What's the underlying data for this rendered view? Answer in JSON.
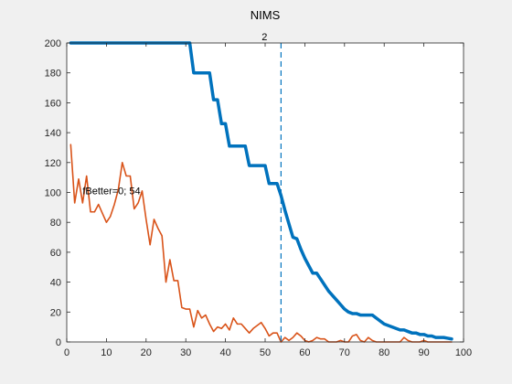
{
  "figure": {
    "title": "NIMS"
  },
  "chart_data": {
    "type": "line",
    "title": "NIMS",
    "xlabel": "",
    "ylabel": "",
    "xlim": [
      0,
      100
    ],
    "ylim": [
      0,
      200
    ],
    "xticks": [
      0,
      10,
      20,
      30,
      40,
      50,
      60,
      70,
      80,
      90,
      100
    ],
    "yticks": [
      0,
      20,
      40,
      60,
      80,
      100,
      120,
      140,
      160,
      180,
      200
    ],
    "grid": false,
    "legend": "none",
    "series": [
      {
        "color": "#0072bd",
        "line_width": "thick",
        "points": [
          [
            1,
            200
          ],
          [
            31,
            200
          ],
          [
            32,
            180
          ],
          [
            36,
            180
          ],
          [
            37,
            162
          ],
          [
            38,
            162
          ],
          [
            39,
            146
          ],
          [
            40,
            146
          ],
          [
            41,
            131
          ],
          [
            45,
            131
          ],
          [
            46,
            118
          ],
          [
            50,
            118
          ],
          [
            51,
            106
          ],
          [
            53,
            106
          ],
          [
            54,
            98
          ],
          [
            55,
            88
          ],
          [
            56,
            79
          ],
          [
            57,
            70
          ],
          [
            58,
            69
          ],
          [
            59,
            62
          ],
          [
            60,
            56
          ],
          [
            61,
            51
          ],
          [
            62,
            46
          ],
          [
            63,
            46
          ],
          [
            64,
            42
          ],
          [
            65,
            38
          ],
          [
            66,
            34
          ],
          [
            67,
            31
          ],
          [
            68,
            28
          ],
          [
            69,
            25
          ],
          [
            70,
            22
          ],
          [
            71,
            20
          ],
          [
            72,
            19
          ],
          [
            73,
            19
          ],
          [
            74,
            18
          ],
          [
            77,
            18
          ],
          [
            78,
            16
          ],
          [
            79,
            14
          ],
          [
            80,
            12
          ],
          [
            81,
            11
          ],
          [
            82,
            10
          ],
          [
            83,
            9
          ],
          [
            84,
            8
          ],
          [
            85,
            8
          ],
          [
            86,
            7
          ],
          [
            87,
            6
          ],
          [
            88,
            6
          ],
          [
            89,
            5
          ],
          [
            90,
            5
          ],
          [
            91,
            4
          ],
          [
            92,
            4
          ],
          [
            93,
            3
          ],
          [
            94,
            3
          ],
          [
            95,
            3
          ],
          [
            96,
            2.5
          ],
          [
            97,
            2
          ]
        ]
      },
      {
        "color": "#d95319",
        "line_width": "thin",
        "points": [
          [
            1,
            132
          ],
          [
            2,
            93
          ],
          [
            3,
            109
          ],
          [
            4,
            93
          ],
          [
            5,
            111
          ],
          [
            6,
            87
          ],
          [
            7,
            87
          ],
          [
            8,
            92
          ],
          [
            9,
            86
          ],
          [
            10,
            80
          ],
          [
            11,
            84
          ],
          [
            12,
            92
          ],
          [
            13,
            102
          ],
          [
            14,
            120
          ],
          [
            15,
            111
          ],
          [
            16,
            111
          ],
          [
            17,
            89
          ],
          [
            18,
            93
          ],
          [
            19,
            101
          ],
          [
            20,
            82
          ],
          [
            21,
            65
          ],
          [
            22,
            82
          ],
          [
            23,
            76
          ],
          [
            24,
            71
          ],
          [
            25,
            40
          ],
          [
            26,
            55
          ],
          [
            27,
            41
          ],
          [
            28,
            41
          ],
          [
            29,
            23
          ],
          [
            30,
            22
          ],
          [
            31,
            22
          ],
          [
            32,
            10
          ],
          [
            33,
            21
          ],
          [
            34,
            16
          ],
          [
            35,
            18
          ],
          [
            36,
            12
          ],
          [
            37,
            7
          ],
          [
            38,
            10
          ],
          [
            39,
            9
          ],
          [
            40,
            12
          ],
          [
            41,
            8
          ],
          [
            42,
            16
          ],
          [
            43,
            12
          ],
          [
            44,
            12
          ],
          [
            45,
            9
          ],
          [
            46,
            6
          ],
          [
            47,
            9
          ],
          [
            48,
            11
          ],
          [
            49,
            13
          ],
          [
            50,
            9
          ],
          [
            51,
            4
          ],
          [
            52,
            6
          ],
          [
            53,
            6
          ],
          [
            54,
            0
          ],
          [
            55,
            3
          ],
          [
            56,
            1
          ],
          [
            57,
            3
          ],
          [
            58,
            6
          ],
          [
            59,
            4
          ],
          [
            60,
            1
          ],
          [
            61,
            0
          ],
          [
            62,
            1
          ],
          [
            63,
            3
          ],
          [
            64,
            2
          ],
          [
            65,
            2
          ],
          [
            66,
            0
          ],
          [
            67,
            0
          ],
          [
            68,
            0
          ],
          [
            69,
            1
          ],
          [
            70,
            0
          ],
          [
            71,
            0
          ],
          [
            72,
            4
          ],
          [
            73,
            5
          ],
          [
            74,
            1
          ],
          [
            75,
            0
          ],
          [
            76,
            3
          ],
          [
            77,
            1
          ],
          [
            78,
            0
          ],
          [
            79,
            0
          ],
          [
            80,
            0
          ],
          [
            81,
            0
          ],
          [
            82,
            0
          ],
          [
            83,
            0
          ],
          [
            84,
            0
          ],
          [
            85,
            3
          ],
          [
            86,
            1
          ],
          [
            87,
            0
          ],
          [
            88,
            0
          ],
          [
            89,
            0
          ],
          [
            90,
            1
          ],
          [
            91,
            0
          ],
          [
            92,
            0
          ],
          [
            93,
            0
          ],
          [
            94,
            0
          ],
          [
            95,
            0
          ],
          [
            96,
            0
          ],
          [
            97,
            0
          ]
        ]
      }
    ],
    "vline": {
      "x": 54,
      "label": "2",
      "color": "#0072bd",
      "style": "dashed"
    },
    "annotation": {
      "text": "fBetter=0; 54",
      "x": 4,
      "y": 100
    }
  }
}
